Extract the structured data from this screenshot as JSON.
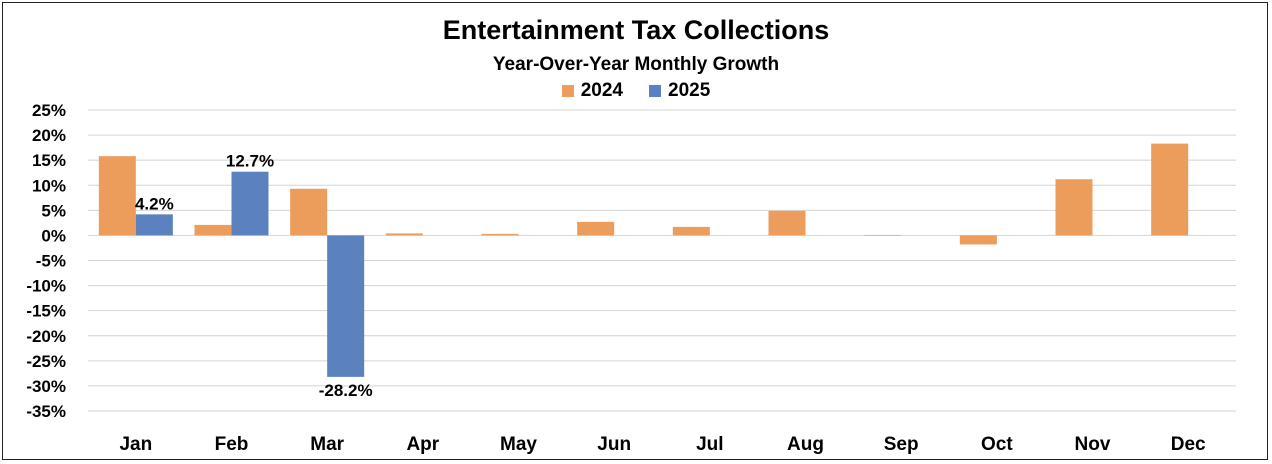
{
  "chart_data": {
    "type": "bar",
    "title": "Entertainment Tax Collections",
    "subtitle": "Year-Over-Year Monthly Growth",
    "xlabel": "",
    "ylabel": "",
    "categories": [
      "Jan",
      "Feb",
      "Mar",
      "Apr",
      "May",
      "Jun",
      "Jul",
      "Aug",
      "Sep",
      "Oct",
      "Nov",
      "Dec"
    ],
    "series": [
      {
        "name": "2024",
        "color": "#ED9D5B",
        "values": [
          15.8,
          2.1,
          9.3,
          0.4,
          0.3,
          2.7,
          1.7,
          4.9,
          0.0,
          -1.8,
          11.2,
          18.3
        ],
        "data_labels": [
          null,
          null,
          null,
          null,
          null,
          null,
          null,
          null,
          null,
          null,
          null,
          null
        ]
      },
      {
        "name": "2025",
        "color": "#5B82BF",
        "values": [
          4.2,
          12.7,
          -28.2,
          null,
          null,
          null,
          null,
          null,
          null,
          null,
          null,
          null
        ],
        "data_labels": [
          "4.2%",
          "12.7%",
          "-28.2%",
          null,
          null,
          null,
          null,
          null,
          null,
          null,
          null,
          null
        ]
      }
    ],
    "yticks": [
      "25%",
      "20%",
      "15%",
      "10%",
      "5%",
      "0%",
      "-5%",
      "-10%",
      "-15%",
      "-20%",
      "-25%",
      "-30%",
      "-35%"
    ],
    "ylim": [
      -35,
      25
    ],
    "grid": true,
    "legend_position": "top-center"
  }
}
